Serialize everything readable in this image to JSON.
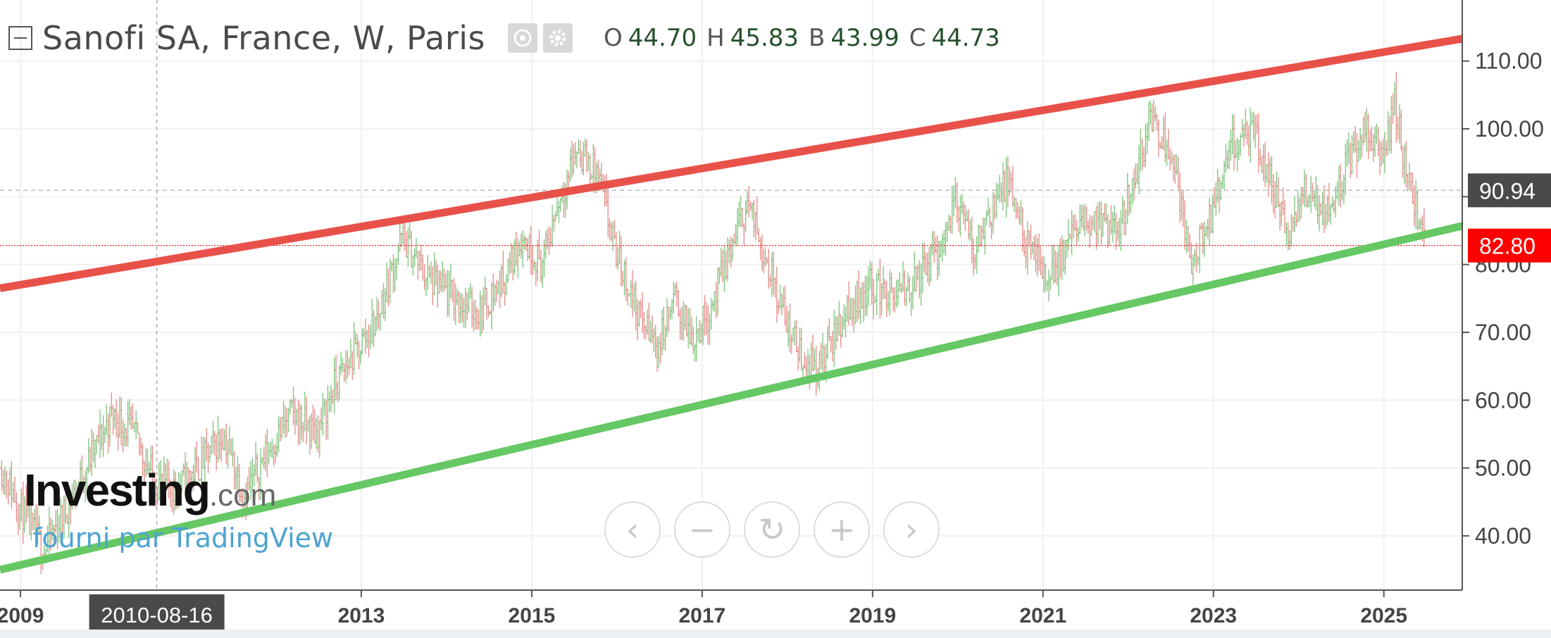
{
  "legend": {
    "title": "Sanofi SA, France, W, Paris",
    "ohlc": [
      {
        "key": "O",
        "value": "44.70"
      },
      {
        "key": "H",
        "value": "45.83"
      },
      {
        "key": "B",
        "value": "43.99"
      },
      {
        "key": "C",
        "value": "44.73"
      }
    ],
    "icons": [
      "eye-icon",
      "gear-icon"
    ]
  },
  "watermark": {
    "logo": "Investing",
    "logo_suffix": ".com",
    "provider": "fourni par TradingView"
  },
  "nav_buttons": [
    {
      "name": "scroll-left-button",
      "icon": "chevron-left-icon",
      "glyph": "‹"
    },
    {
      "name": "zoom-out-button",
      "icon": "minus-icon",
      "glyph": "−"
    },
    {
      "name": "reset-button",
      "icon": "refresh-icon",
      "glyph": "↻"
    },
    {
      "name": "zoom-in-button",
      "icon": "plus-icon",
      "glyph": "+"
    },
    {
      "name": "scroll-right-button",
      "icon": "chevron-right-icon",
      "glyph": "›"
    }
  ],
  "chart_data": {
    "type": "ohlc",
    "interval": "weekly",
    "ylim": [
      32,
      119
    ],
    "xlim": [
      2008.78,
      2025.94
    ],
    "grid": true,
    "y_ticks": [
      "40.00",
      "50.00",
      "60.00",
      "70.00",
      "80.00",
      "90.00",
      "100.00",
      "110.00"
    ],
    "x_ticks": [
      "2009",
      "2013",
      "2015",
      "2017",
      "2019",
      "2021",
      "2023",
      "2025"
    ],
    "crosshair": {
      "x_label": "2010-08-16",
      "x": 2010.62,
      "y_label": "90.94",
      "y": 90.94
    },
    "last_price": {
      "label": "82.80",
      "value": 82.8,
      "color": "#ff0000"
    },
    "trendlines": [
      {
        "name": "resistance",
        "color": "#e8514a",
        "from": {
          "x": 2008.78,
          "y": 76.5
        },
        "to": {
          "x": 2025.94,
          "y": 113.3
        }
      },
      {
        "name": "support",
        "color": "#66c864",
        "from": {
          "x": 2008.78,
          "y": 35.0
        },
        "to": {
          "x": 2025.94,
          "y": 85.7
        }
      }
    ],
    "series": [
      {
        "values": [
          [
            2008.8,
            50
          ],
          [
            2009.1,
            42
          ],
          [
            2009.3,
            38
          ],
          [
            2009.6,
            45
          ],
          [
            2009.9,
            53
          ],
          [
            2010.1,
            58
          ],
          [
            2010.35,
            55
          ],
          [
            2010.6,
            48
          ],
          [
            2010.85,
            47
          ],
          [
            2011.1,
            50
          ],
          [
            2011.4,
            55
          ],
          [
            2011.65,
            46
          ],
          [
            2011.9,
            52
          ],
          [
            2012.2,
            58
          ],
          [
            2012.5,
            55
          ],
          [
            2012.7,
            62
          ],
          [
            2012.9,
            66
          ],
          [
            2013.2,
            72
          ],
          [
            2013.5,
            84
          ],
          [
            2013.8,
            78
          ],
          [
            2014.1,
            75
          ],
          [
            2014.4,
            73
          ],
          [
            2014.7,
            78
          ],
          [
            2014.9,
            84
          ],
          [
            2015.15,
            80
          ],
          [
            2015.3,
            88
          ],
          [
            2015.55,
            97
          ],
          [
            2015.8,
            93
          ],
          [
            2016.0,
            82
          ],
          [
            2016.3,
            72
          ],
          [
            2016.5,
            68
          ],
          [
            2016.7,
            75
          ],
          [
            2016.9,
            69
          ],
          [
            2017.1,
            73
          ],
          [
            2017.35,
            82
          ],
          [
            2017.55,
            89
          ],
          [
            2017.8,
            80
          ],
          [
            2018.0,
            72
          ],
          [
            2018.2,
            66
          ],
          [
            2018.4,
            65
          ],
          [
            2018.7,
            73
          ],
          [
            2019.0,
            77
          ],
          [
            2019.3,
            75
          ],
          [
            2019.55,
            78
          ],
          [
            2019.8,
            82
          ],
          [
            2020.0,
            90
          ],
          [
            2020.2,
            82
          ],
          [
            2020.4,
            88
          ],
          [
            2020.6,
            92
          ],
          [
            2020.85,
            82
          ],
          [
            2021.1,
            78
          ],
          [
            2021.35,
            84
          ],
          [
            2021.6,
            87
          ],
          [
            2021.85,
            84
          ],
          [
            2022.1,
            93
          ],
          [
            2022.3,
            102
          ],
          [
            2022.55,
            96
          ],
          [
            2022.75,
            80
          ],
          [
            2023.0,
            87
          ],
          [
            2023.25,
            98
          ],
          [
            2023.5,
            99
          ],
          [
            2023.75,
            90
          ],
          [
            2023.9,
            84
          ],
          [
            2024.1,
            91
          ],
          [
            2024.35,
            88
          ],
          [
            2024.6,
            95
          ],
          [
            2024.8,
            100
          ],
          [
            2025.0,
            96
          ],
          [
            2025.15,
            104
          ],
          [
            2025.3,
            92
          ],
          [
            2025.5,
            84
          ]
        ]
      }
    ]
  }
}
